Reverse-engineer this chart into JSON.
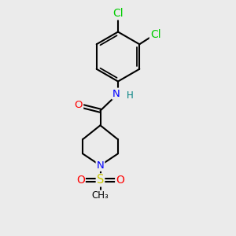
{
  "background_color": "#ebebeb",
  "bond_color": "#000000",
  "bond_width": 1.5,
  "atom_colors": {
    "N_amide": "#0000ff",
    "N_pip": "#0000ff",
    "O_carbonyl": "#ff0000",
    "O_sulfonyl": "#ff0000",
    "S": "#cccc00",
    "Cl": "#00cc00",
    "H": "#008080",
    "C": "#000000"
  },
  "font_size": 8.5,
  "fig_width": 3.0,
  "fig_height": 3.0,
  "dpi": 100,
  "xlim": [
    0,
    10
  ],
  "ylim": [
    0,
    10
  ]
}
